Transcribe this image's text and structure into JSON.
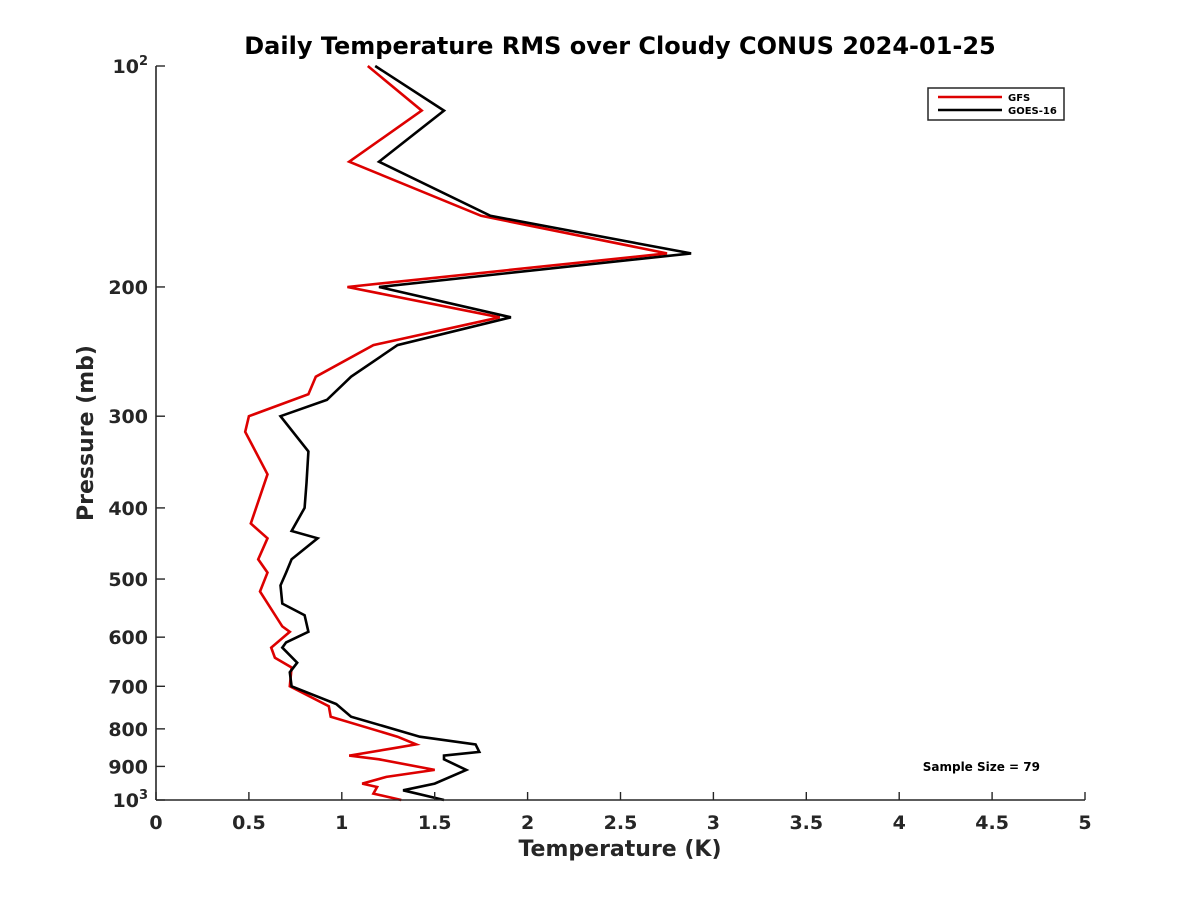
{
  "chart_data": {
    "type": "line",
    "title": "Daily Temperature RMS over Cloudy CONUS 2024-01-25",
    "xlabel": "Temperature (K)",
    "ylabel": "Pressure (mb)",
    "xlim": [
      0,
      5
    ],
    "ylim": [
      100,
      1000
    ],
    "y_scale": "log",
    "y_reversed": true,
    "grid": false,
    "legend_position": "top-right",
    "x_ticks": [
      0,
      0.5,
      1,
      1.5,
      2,
      2.5,
      3,
      3.5,
      4,
      4.5,
      5
    ],
    "x_tick_labels": [
      "0",
      "0.5",
      "1",
      "1.5",
      "2",
      "2.5",
      "3",
      "3.5",
      "4",
      "4.5",
      "5"
    ],
    "y_ticks": [
      100,
      200,
      300,
      400,
      500,
      600,
      700,
      800,
      900,
      1000
    ],
    "y_tick_labels": [
      {
        "base": "10",
        "exp": "2"
      },
      {
        "base": "200",
        "exp": ""
      },
      {
        "base": "300",
        "exp": ""
      },
      {
        "base": "400",
        "exp": ""
      },
      {
        "base": "500",
        "exp": ""
      },
      {
        "base": "600",
        "exp": ""
      },
      {
        "base": "700",
        "exp": ""
      },
      {
        "base": "800",
        "exp": ""
      },
      {
        "base": "900",
        "exp": ""
      },
      {
        "base": "10",
        "exp": "3"
      }
    ],
    "series": [
      {
        "name": "GFS",
        "color": "#dd0000",
        "points": [
          [
            1.14,
            100
          ],
          [
            1.43,
            115
          ],
          [
            1.04,
            135
          ],
          [
            1.75,
            160
          ],
          [
            2.75,
            180
          ],
          [
            1.03,
            200
          ],
          [
            1.85,
            220
          ],
          [
            1.17,
            240
          ],
          [
            0.86,
            265
          ],
          [
            0.82,
            280
          ],
          [
            0.5,
            300
          ],
          [
            0.48,
            315
          ],
          [
            0.6,
            360
          ],
          [
            0.51,
            420
          ],
          [
            0.6,
            440
          ],
          [
            0.55,
            470
          ],
          [
            0.6,
            490
          ],
          [
            0.56,
            520
          ],
          [
            0.68,
            580
          ],
          [
            0.72,
            590
          ],
          [
            0.62,
            620
          ],
          [
            0.64,
            640
          ],
          [
            0.73,
            660
          ],
          [
            0.72,
            700
          ],
          [
            0.93,
            745
          ],
          [
            0.94,
            770
          ],
          [
            1.3,
            820
          ],
          [
            1.4,
            840
          ],
          [
            1.28,
            850
          ],
          [
            1.04,
            870
          ],
          [
            1.2,
            880
          ],
          [
            1.5,
            910
          ],
          [
            1.24,
            930
          ],
          [
            1.11,
            950
          ],
          [
            1.19,
            960
          ],
          [
            1.17,
            980
          ],
          [
            1.32,
            1000
          ]
        ]
      },
      {
        "name": "GOES-16",
        "color": "#000000",
        "points": [
          [
            1.18,
            100
          ],
          [
            1.55,
            115
          ],
          [
            1.2,
            135
          ],
          [
            1.8,
            160
          ],
          [
            2.88,
            180
          ],
          [
            1.2,
            200
          ],
          [
            1.91,
            220
          ],
          [
            1.3,
            240
          ],
          [
            1.05,
            265
          ],
          [
            0.92,
            285
          ],
          [
            0.67,
            300
          ],
          [
            0.82,
            335
          ],
          [
            0.81,
            370
          ],
          [
            0.8,
            400
          ],
          [
            0.73,
            430
          ],
          [
            0.87,
            440
          ],
          [
            0.73,
            470
          ],
          [
            0.7,
            490
          ],
          [
            0.67,
            510
          ],
          [
            0.68,
            540
          ],
          [
            0.8,
            560
          ],
          [
            0.82,
            590
          ],
          [
            0.7,
            610
          ],
          [
            0.68,
            620
          ],
          [
            0.76,
            650
          ],
          [
            0.72,
            670
          ],
          [
            0.73,
            700
          ],
          [
            0.97,
            740
          ],
          [
            1.05,
            770
          ],
          [
            1.42,
            820
          ],
          [
            1.72,
            840
          ],
          [
            1.74,
            860
          ],
          [
            1.55,
            870
          ],
          [
            1.55,
            880
          ],
          [
            1.67,
            910
          ],
          [
            1.5,
            950
          ],
          [
            1.33,
            970
          ],
          [
            1.55,
            1000
          ]
        ]
      }
    ],
    "annotation": "Sample Size = 79"
  }
}
